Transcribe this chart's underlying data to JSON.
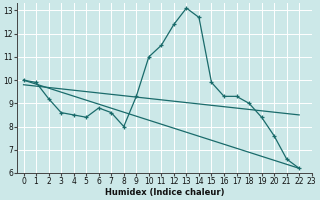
{
  "xlabel": "Humidex (Indice chaleur)",
  "xlim": [
    -0.5,
    23
  ],
  "ylim": [
    6,
    13.3
  ],
  "yticks": [
    6,
    7,
    8,
    9,
    10,
    11,
    12,
    13
  ],
  "xticks": [
    0,
    1,
    2,
    3,
    4,
    5,
    6,
    7,
    8,
    9,
    10,
    11,
    12,
    13,
    14,
    15,
    16,
    17,
    18,
    19,
    20,
    21,
    22,
    23
  ],
  "bg_color": "#cce8e8",
  "line_color": "#1a6b6b",
  "grid_color": "#ffffff",
  "line1_x": [
    0,
    1,
    2,
    3,
    4,
    5,
    6,
    7,
    8,
    9,
    10,
    11,
    12,
    13,
    14,
    15,
    16,
    17,
    18,
    19,
    20,
    21,
    22
  ],
  "line1_y": [
    10.0,
    9.9,
    9.2,
    8.6,
    8.5,
    8.4,
    8.8,
    8.6,
    8.0,
    9.3,
    11.0,
    11.5,
    12.4,
    13.1,
    12.7,
    9.9,
    9.3,
    9.3,
    9.0,
    8.4,
    7.6,
    6.6,
    6.2
  ],
  "line2_x": [
    0,
    22
  ],
  "line2_y": [
    10.0,
    6.2
  ],
  "line3_x": [
    0,
    22
  ],
  "line3_y": [
    9.8,
    8.5
  ]
}
